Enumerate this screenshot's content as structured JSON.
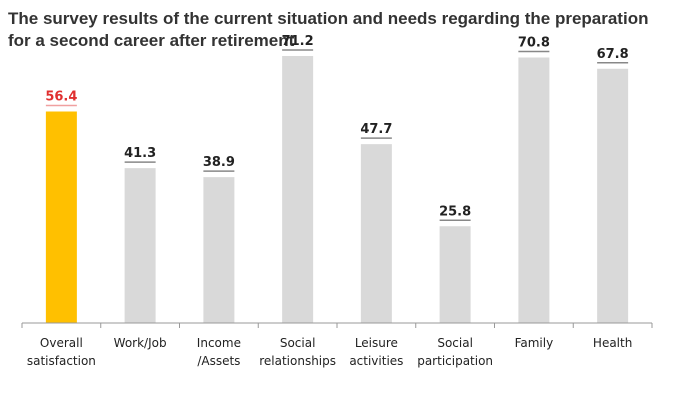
{
  "chart_data": {
    "type": "bar",
    "title": "The survey results of the current situation and needs regarding the preparation for a second career after retirement",
    "categories": [
      [
        "Overall",
        "satisfaction"
      ],
      [
        "Work/Job"
      ],
      [
        "Income",
        "/Assets"
      ],
      [
        "Social",
        "relationships"
      ],
      [
        "Leisure",
        "activities"
      ],
      [
        "Social",
        "participation"
      ],
      [
        "Family"
      ],
      [
        "Health"
      ]
    ],
    "values": [
      56.4,
      41.3,
      38.9,
      71.2,
      47.7,
      25.8,
      70.8,
      67.8
    ],
    "ylim": [
      0,
      80
    ],
    "grid": false,
    "highlight_index": 0,
    "colors": {
      "highlight_bar": "#FFC000",
      "bar": "#D9D9D9",
      "highlight_label": "#E03030",
      "label": "#222222",
      "axis": "#999999",
      "label_line": "#888888",
      "highlight_label_line": "#F0A0A0"
    }
  }
}
